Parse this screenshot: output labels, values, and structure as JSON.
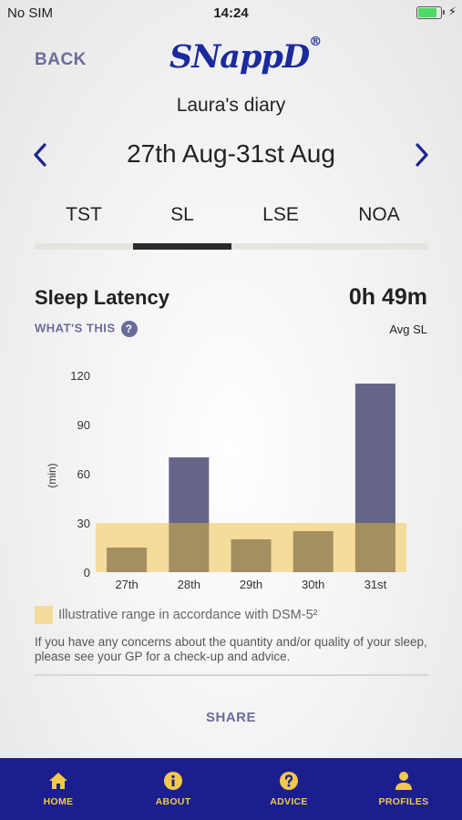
{
  "status": {
    "carrier": "No SIM",
    "time": "14:24",
    "battery_level": 0.9,
    "battery_color": "#4cd964"
  },
  "header": {
    "back_label": "BACK",
    "logo_text": "SNappD",
    "logo_mark": "®"
  },
  "diary": {
    "title": "Laura's diary",
    "date_range": "27th Aug-31st Aug",
    "prev_icon": "chevron-left-icon",
    "next_icon": "chevron-right-icon"
  },
  "tabs": [
    {
      "label": "TST"
    },
    {
      "label": "SL",
      "active": true
    },
    {
      "label": "LSE"
    },
    {
      "label": "NOA"
    }
  ],
  "section": {
    "title": "Sleep Latency",
    "avg_value": "0h 49m",
    "whats_this": "WHAT'S THIS",
    "help_glyph": "?",
    "avg_label": "Avg SL"
  },
  "chart_data": {
    "type": "bar",
    "categories": [
      "27th",
      "28th",
      "29th",
      "30th",
      "31st"
    ],
    "values": [
      15,
      70,
      20,
      25,
      115
    ],
    "ylabel": "(min)",
    "ylim": [
      0,
      120
    ],
    "yticks": [
      0,
      30,
      60,
      90,
      120
    ],
    "grid": false,
    "reference_band": [
      0,
      30
    ],
    "colors": {
      "bar": "#656687",
      "band": "#f3dc9c",
      "overlap": "#a38f60"
    }
  },
  "legend": {
    "label": "Illustrative range in accordance with DSM-5²",
    "color": "#f3dc9c"
  },
  "note": "If you have any concerns about the quantity and/or quality of your sleep, please see your GP for a check-up and advice.",
  "share_label": "SHARE",
  "nav": [
    {
      "label": "HOME",
      "icon": "home-icon"
    },
    {
      "label": "ABOUT",
      "icon": "info-icon"
    },
    {
      "label": "ADVICE",
      "icon": "question-icon"
    },
    {
      "label": "PROFILES",
      "icon": "person-icon"
    }
  ],
  "colors": {
    "accent": "#1b2a9c",
    "nav_bg": "#1b1f8e",
    "nav_fg": "#f2c84b",
    "muted_link": "#6a6d9a"
  }
}
